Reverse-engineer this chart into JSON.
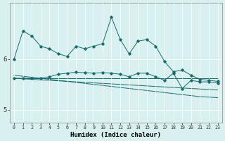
{
  "x": [
    0,
    1,
    2,
    3,
    4,
    5,
    6,
    7,
    8,
    9,
    10,
    11,
    12,
    13,
    14,
    15,
    16,
    17,
    18,
    19,
    20,
    21,
    22,
    23
  ],
  "y_upper": [
    6.0,
    6.55,
    6.45,
    6.25,
    6.2,
    6.1,
    6.05,
    6.25,
    6.2,
    6.25,
    6.3,
    6.82,
    6.38,
    6.1,
    6.35,
    6.38,
    6.25,
    5.95,
    5.75,
    5.78,
    5.68,
    5.6,
    5.58,
    5.56
  ],
  "y_mid": [
    5.62,
    5.62,
    5.62,
    5.62,
    5.65,
    5.7,
    5.72,
    5.74,
    5.73,
    5.72,
    5.73,
    5.72,
    5.7,
    5.65,
    5.72,
    5.72,
    5.65,
    5.58,
    5.72,
    5.42,
    5.58,
    5.55,
    5.55,
    5.53
  ],
  "y_flat": [
    5.62,
    5.62,
    5.62,
    5.62,
    5.62,
    5.62,
    5.62,
    5.62,
    5.62,
    5.62,
    5.62,
    5.62,
    5.62,
    5.62,
    5.62,
    5.62,
    5.62,
    5.62,
    5.62,
    5.62,
    5.62,
    5.62,
    5.62,
    5.62
  ],
  "y_decline1": [
    5.62,
    5.61,
    5.6,
    5.59,
    5.58,
    5.57,
    5.56,
    5.55,
    5.54,
    5.53,
    5.52,
    5.51,
    5.5,
    5.49,
    5.48,
    5.47,
    5.46,
    5.45,
    5.44,
    5.43,
    5.42,
    5.41,
    5.4,
    5.39
  ],
  "y_decline2": [
    5.68,
    5.66,
    5.64,
    5.62,
    5.6,
    5.58,
    5.56,
    5.54,
    5.52,
    5.5,
    5.48,
    5.46,
    5.44,
    5.42,
    5.4,
    5.38,
    5.36,
    5.34,
    5.32,
    5.3,
    5.28,
    5.26,
    5.25,
    5.24
  ],
  "background_color": "#d8f0f0",
  "line_color": "#1a6b6b",
  "grid_color": "#ffffff",
  "xlabel": "Humidex (Indice chaleur)",
  "yticks": [
    5,
    6
  ],
  "ylim": [
    4.75,
    7.1
  ],
  "xlim": [
    -0.5,
    23.5
  ]
}
